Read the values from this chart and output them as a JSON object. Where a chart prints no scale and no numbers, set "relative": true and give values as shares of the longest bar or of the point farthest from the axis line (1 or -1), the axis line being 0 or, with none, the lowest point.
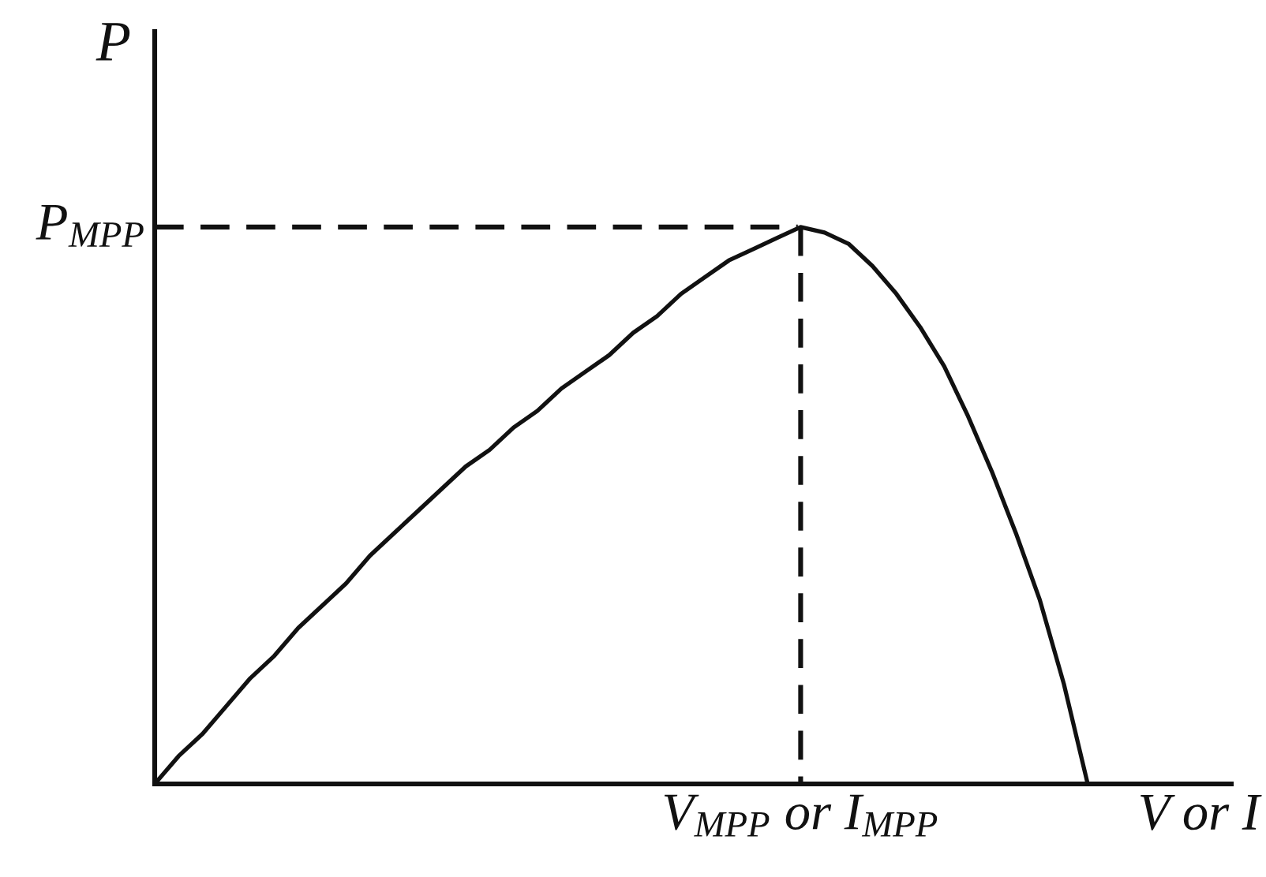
{
  "chart_data": {
    "type": "line",
    "relative": true,
    "xlabel": "V or I",
    "ylabel": "P",
    "categories": [
      null,
      null,
      null,
      null,
      null,
      null,
      null,
      null,
      null,
      null,
      null,
      null,
      null,
      null,
      null,
      null,
      null,
      null,
      null,
      null,
      null,
      null,
      null,
      null,
      null,
      null,
      null,
      null,
      null,
      null,
      null,
      null,
      null,
      null,
      null,
      null,
      null,
      null,
      null,
      null,
      null,
      null,
      null,
      null,
      null,
      null
    ],
    "series": [
      {
        "color": "#111111",
        "values": [
          0,
          0.05,
          0.09,
          0.14,
          0.19,
          0.23,
          0.28,
          0.32,
          0.36,
          0.41,
          0.45,
          0.49,
          0.53,
          0.57,
          0.6,
          0.64,
          0.67,
          0.71,
          0.74,
          0.77,
          0.81,
          0.84,
          0.88,
          0.91,
          0.94,
          0.96,
          0.98,
          1,
          0.99,
          0.97,
          0.93,
          0.88,
          0.82,
          0.75,
          0.66,
          0.56,
          0.45,
          0.33,
          0.18,
          0,
          null,
          null,
          null,
          null,
          null,
          null
        ]
      }
    ],
    "ref_lines": [
      {
        "axis": "y",
        "value": 1,
        "label": "P$_{MPP}$",
        "line_style": "dashed",
        "color": "#111111"
      }
    ],
    "annotations": [
      "V$_{MPP}$ or I$_{MPP}$"
    ],
    "marker": "none",
    "line_style": "solid"
  }
}
